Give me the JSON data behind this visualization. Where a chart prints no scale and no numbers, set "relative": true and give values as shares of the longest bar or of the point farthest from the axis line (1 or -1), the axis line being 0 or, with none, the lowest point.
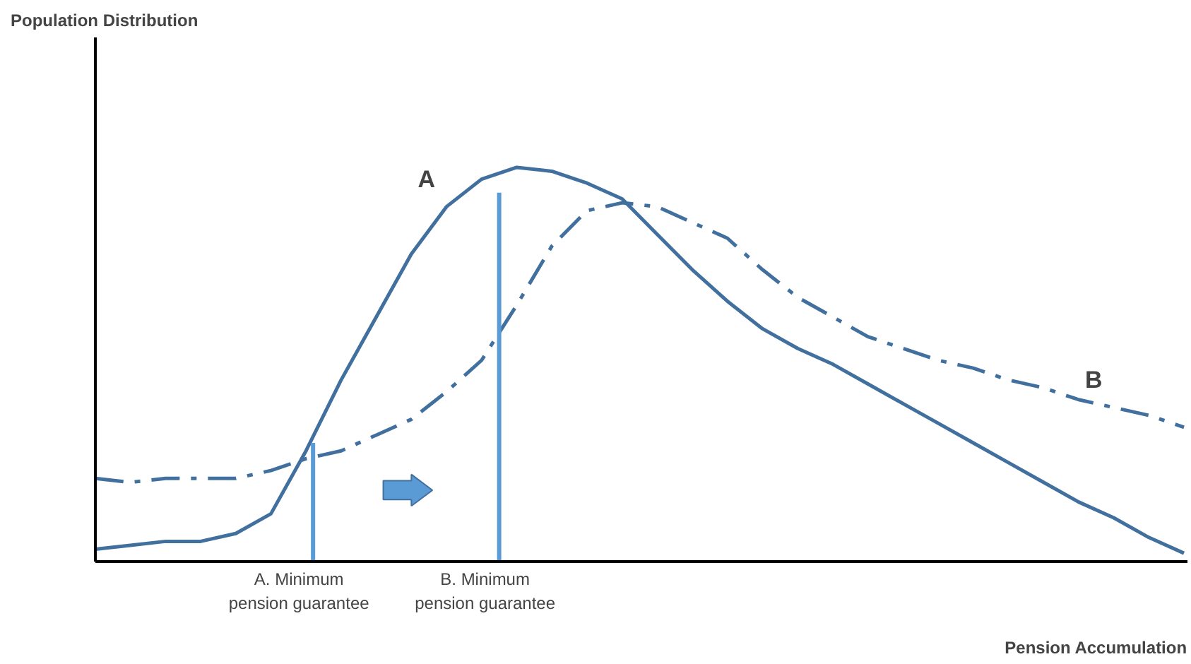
{
  "chart_data": {
    "type": "line",
    "relative": true,
    "xlabel": "Pension Accumulation",
    "categories": [
      null,
      null,
      null,
      null,
      null,
      null,
      null,
      null,
      null,
      null,
      null,
      null,
      null,
      null,
      null,
      null,
      null,
      null,
      null,
      null,
      null,
      null,
      null,
      null,
      null,
      null,
      null,
      null,
      null,
      null,
      null,
      null
    ],
    "series": [
      {
        "name": "A",
        "color": "#41709f",
        "line_style": "solid",
        "values": [
          0.03,
          0.04,
          0.05,
          0.05,
          0.07,
          0.12,
          0.28,
          0.46,
          0.62,
          0.78,
          0.9,
          0.97,
          1.0,
          0.99,
          0.96,
          0.92,
          0.83,
          0.74,
          0.66,
          0.59,
          0.54,
          0.5,
          0.45,
          0.4,
          0.35,
          0.3,
          0.25,
          0.2,
          0.15,
          0.11,
          0.06,
          0.02
        ]
      },
      {
        "name": "B",
        "color": "#41709f",
        "line_style": "dashdot",
        "values": [
          0.21,
          0.2,
          0.21,
          0.21,
          0.21,
          0.23,
          0.26,
          0.28,
          0.32,
          0.36,
          0.43,
          0.51,
          0.65,
          0.8,
          0.89,
          0.91,
          0.9,
          0.86,
          0.82,
          0.74,
          0.67,
          0.62,
          0.57,
          0.54,
          0.51,
          0.49,
          0.46,
          0.44,
          0.41,
          0.39,
          0.37,
          0.34
        ]
      }
    ],
    "annotations": [
      "Population Distribution",
      "A. Minimum\npension guarantee",
      "B. Minimum\npension guarantee"
    ],
    "grid": false,
    "legend": false
  }
}
